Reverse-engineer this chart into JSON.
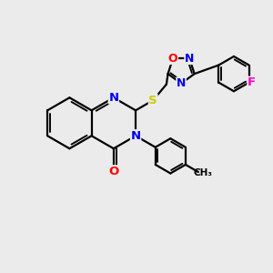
{
  "bg_color": "#ebebeb",
  "bond_color": "#000000",
  "bond_width": 1.6,
  "atom_colors": {
    "N": "#0000ee",
    "O": "#ff0000",
    "S": "#cccc00",
    "F": "#ff00cc",
    "C": "#000000"
  },
  "font_size_atom": 9.5
}
